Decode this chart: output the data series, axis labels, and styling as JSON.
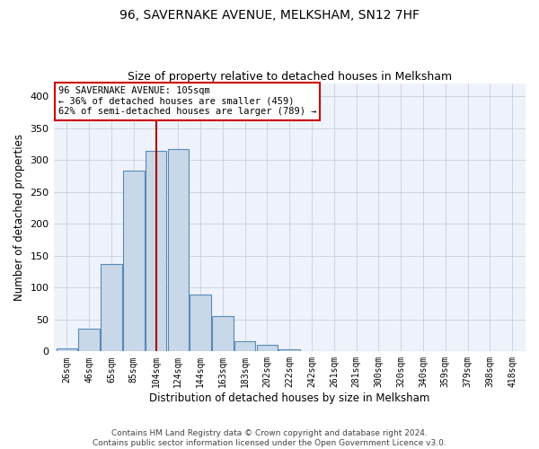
{
  "title": "96, SAVERNAKE AVENUE, MELKSHAM, SN12 7HF",
  "subtitle": "Size of property relative to detached houses in Melksham",
  "xlabel": "Distribution of detached houses by size in Melksham",
  "ylabel": "Number of detached properties",
  "property_size": 105,
  "pct_smaller": 36,
  "n_smaller": 459,
  "pct_semi_larger": 62,
  "n_semi_larger": 789,
  "bin_labels": [
    "26sqm",
    "46sqm",
    "65sqm",
    "85sqm",
    "104sqm",
    "124sqm",
    "144sqm",
    "163sqm",
    "183sqm",
    "202sqm",
    "222sqm",
    "242sqm",
    "261sqm",
    "281sqm",
    "300sqm",
    "320sqm",
    "340sqm",
    "359sqm",
    "379sqm",
    "398sqm",
    "418sqm"
  ],
  "bar_heights": [
    5,
    35,
    137,
    284,
    315,
    317,
    89,
    55,
    16,
    10,
    3,
    1,
    0,
    0,
    1,
    0,
    1,
    0,
    0,
    0,
    1
  ],
  "bar_color": "#c8d8e8",
  "bar_edge_color": "#5a8ab5",
  "property_bin_index": 4,
  "vline_color": "#aa0000",
  "annotation_box_color": "#cc0000",
  "background_color": "#eef2fb",
  "grid_color": "#c0c8d8",
  "footer_text": "Contains HM Land Registry data © Crown copyright and database right 2024.\nContains public sector information licensed under the Open Government Licence v3.0.",
  "ylim": [
    0,
    420
  ],
  "yticks": [
    0,
    50,
    100,
    150,
    200,
    250,
    300,
    350,
    400
  ]
}
